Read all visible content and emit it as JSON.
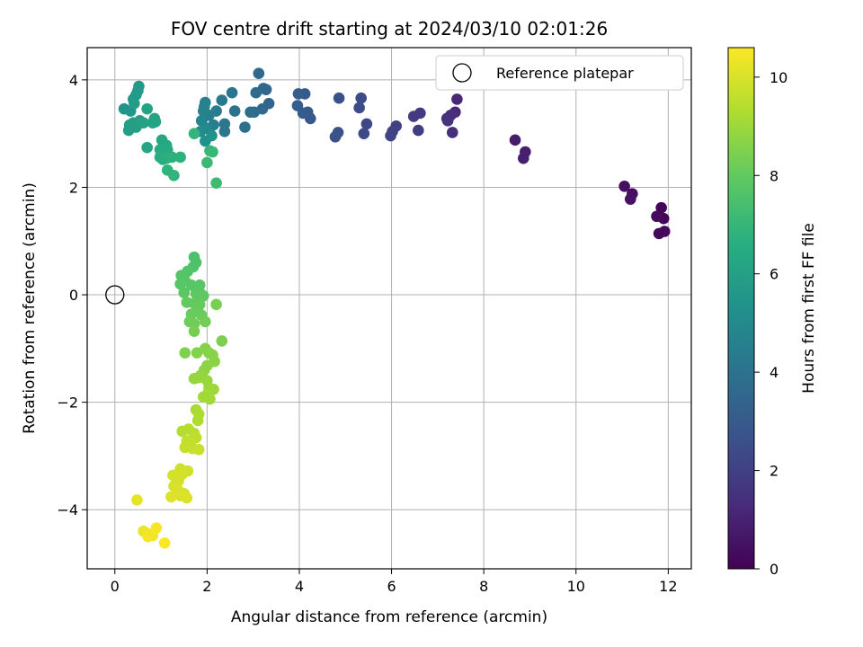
{
  "chart_data": {
    "type": "scatter",
    "title": "FOV centre drift starting at 2024/03/10 02:01:26",
    "xlabel": "Angular distance from reference (arcmin)",
    "ylabel": "Rotation from reference (arcmin)",
    "xlim": [
      -0.6,
      12.5
    ],
    "ylim": [
      -5.1,
      4.6
    ],
    "xticks": [
      "0",
      "2",
      "4",
      "6",
      "8",
      "10",
      "12"
    ],
    "yticks": [
      "4",
      "2",
      "0",
      "−2",
      "−4"
    ],
    "grid": true,
    "legend": {
      "position": "top-right",
      "label": "Reference platepar"
    },
    "reference_point": {
      "x": 0,
      "y": 0
    },
    "colorbar": {
      "label": "Hours from first FF file",
      "colormap": "viridis",
      "range": [
        0,
        10.6
      ],
      "ticks": [
        "0",
        "2",
        "4",
        "6",
        "8",
        "10"
      ]
    },
    "points": [
      {
        "x": 11.85,
        "y": 1.62,
        "c": 0.1
      },
      {
        "x": 11.9,
        "y": 1.42,
        "c": 0.15
      },
      {
        "x": 11.92,
        "y": 1.18,
        "c": 0.2
      },
      {
        "x": 11.8,
        "y": 1.14,
        "c": 0.25
      },
      {
        "x": 11.75,
        "y": 1.46,
        "c": 0.3
      },
      {
        "x": 11.22,
        "y": 1.88,
        "c": 0.4
      },
      {
        "x": 11.05,
        "y": 2.02,
        "c": 0.45
      },
      {
        "x": 11.18,
        "y": 1.78,
        "c": 0.5
      },
      {
        "x": 8.68,
        "y": 2.88,
        "c": 0.8
      },
      {
        "x": 8.9,
        "y": 2.66,
        "c": 0.9
      },
      {
        "x": 8.86,
        "y": 2.54,
        "c": 0.95
      },
      {
        "x": 7.42,
        "y": 3.64,
        "c": 1.2
      },
      {
        "x": 7.38,
        "y": 3.4,
        "c": 1.3
      },
      {
        "x": 7.28,
        "y": 3.34,
        "c": 1.35
      },
      {
        "x": 7.32,
        "y": 3.02,
        "c": 1.4
      },
      {
        "x": 7.2,
        "y": 3.28,
        "c": 1.45
      },
      {
        "x": 7.22,
        "y": 3.24,
        "c": 1.5
      },
      {
        "x": 6.62,
        "y": 3.38,
        "c": 1.8
      },
      {
        "x": 6.48,
        "y": 3.32,
        "c": 1.85
      },
      {
        "x": 6.58,
        "y": 3.06,
        "c": 1.9
      },
      {
        "x": 6.1,
        "y": 3.14,
        "c": 2.0
      },
      {
        "x": 6.02,
        "y": 3.04,
        "c": 2.05
      },
      {
        "x": 5.98,
        "y": 2.96,
        "c": 2.1
      },
      {
        "x": 5.46,
        "y": 3.18,
        "c": 2.3
      },
      {
        "x": 5.4,
        "y": 3.0,
        "c": 2.35
      },
      {
        "x": 5.34,
        "y": 3.66,
        "c": 2.4
      },
      {
        "x": 5.3,
        "y": 3.48,
        "c": 2.45
      },
      {
        "x": 4.86,
        "y": 3.66,
        "c": 2.6
      },
      {
        "x": 4.84,
        "y": 3.02,
        "c": 2.65
      },
      {
        "x": 4.78,
        "y": 2.94,
        "c": 2.7
      },
      {
        "x": 4.24,
        "y": 3.28,
        "c": 2.9
      },
      {
        "x": 4.18,
        "y": 3.4,
        "c": 2.95
      },
      {
        "x": 4.12,
        "y": 3.74,
        "c": 3.0
      },
      {
        "x": 4.08,
        "y": 3.38,
        "c": 3.05
      },
      {
        "x": 3.98,
        "y": 3.74,
        "c": 3.1
      },
      {
        "x": 3.96,
        "y": 3.52,
        "c": 3.15
      },
      {
        "x": 3.34,
        "y": 3.56,
        "c": 3.4
      },
      {
        "x": 3.28,
        "y": 3.82,
        "c": 3.45
      },
      {
        "x": 3.22,
        "y": 3.84,
        "c": 3.5
      },
      {
        "x": 3.2,
        "y": 3.46,
        "c": 3.55
      },
      {
        "x": 3.12,
        "y": 4.12,
        "c": 3.6
      },
      {
        "x": 3.06,
        "y": 3.76,
        "c": 3.65
      },
      {
        "x": 3.02,
        "y": 3.4,
        "c": 3.7
      },
      {
        "x": 2.94,
        "y": 3.4,
        "c": 3.75
      },
      {
        "x": 2.82,
        "y": 3.12,
        "c": 3.9
      },
      {
        "x": 2.6,
        "y": 3.42,
        "c": 4.0
      },
      {
        "x": 2.54,
        "y": 3.76,
        "c": 4.05
      },
      {
        "x": 2.38,
        "y": 3.04,
        "c": 4.15
      },
      {
        "x": 2.38,
        "y": 3.18,
        "c": 4.2
      },
      {
        "x": 2.32,
        "y": 3.62,
        "c": 4.25
      },
      {
        "x": 2.2,
        "y": 3.42,
        "c": 4.4
      },
      {
        "x": 2.14,
        "y": 3.16,
        "c": 4.5
      },
      {
        "x": 2.04,
        "y": 3.34,
        "c": 4.55
      },
      {
        "x": 1.96,
        "y": 3.58,
        "c": 4.6
      },
      {
        "x": 1.94,
        "y": 3.5,
        "c": 4.65
      },
      {
        "x": 1.92,
        "y": 3.42,
        "c": 4.7
      },
      {
        "x": 1.88,
        "y": 3.24,
        "c": 4.8
      },
      {
        "x": 1.98,
        "y": 3.1,
        "c": 4.9
      },
      {
        "x": 1.86,
        "y": 3.04,
        "c": 5.1
      },
      {
        "x": 1.96,
        "y": 2.86,
        "c": 5.3
      },
      {
        "x": 2.1,
        "y": 2.96,
        "c": 5.4
      },
      {
        "x": 0.2,
        "y": 3.46,
        "c": 5.5
      },
      {
        "x": 0.34,
        "y": 3.42,
        "c": 5.55
      },
      {
        "x": 0.4,
        "y": 3.64,
        "c": 5.6
      },
      {
        "x": 0.46,
        "y": 3.72,
        "c": 5.65
      },
      {
        "x": 0.52,
        "y": 3.88,
        "c": 5.7
      },
      {
        "x": 0.5,
        "y": 3.8,
        "c": 5.75
      },
      {
        "x": 0.42,
        "y": 3.56,
        "c": 5.8
      },
      {
        "x": 0.3,
        "y": 3.06,
        "c": 5.85
      },
      {
        "x": 0.32,
        "y": 3.16,
        "c": 5.9
      },
      {
        "x": 0.4,
        "y": 3.2,
        "c": 5.92
      },
      {
        "x": 0.46,
        "y": 3.12,
        "c": 5.95
      },
      {
        "x": 0.54,
        "y": 3.24,
        "c": 6.0
      },
      {
        "x": 0.62,
        "y": 3.2,
        "c": 6.02
      },
      {
        "x": 0.7,
        "y": 3.46,
        "c": 6.05
      },
      {
        "x": 0.82,
        "y": 3.2,
        "c": 6.1
      },
      {
        "x": 0.86,
        "y": 3.28,
        "c": 6.12
      },
      {
        "x": 0.88,
        "y": 3.22,
        "c": 6.15
      },
      {
        "x": 0.7,
        "y": 2.74,
        "c": 6.2
      },
      {
        "x": 1.02,
        "y": 2.88,
        "c": 6.3
      },
      {
        "x": 1.12,
        "y": 2.78,
        "c": 6.35
      },
      {
        "x": 1.14,
        "y": 2.7,
        "c": 6.4
      },
      {
        "x": 1.06,
        "y": 2.62,
        "c": 6.45
      },
      {
        "x": 0.98,
        "y": 2.7,
        "c": 6.5
      },
      {
        "x": 0.98,
        "y": 2.56,
        "c": 6.55
      },
      {
        "x": 1.04,
        "y": 2.52,
        "c": 6.6
      },
      {
        "x": 1.12,
        "y": 2.54,
        "c": 6.65
      },
      {
        "x": 1.24,
        "y": 2.56,
        "c": 6.7
      },
      {
        "x": 1.42,
        "y": 2.56,
        "c": 6.75
      },
      {
        "x": 1.14,
        "y": 2.32,
        "c": 6.8
      },
      {
        "x": 1.28,
        "y": 2.22,
        "c": 6.85
      },
      {
        "x": 1.72,
        "y": 3.0,
        "c": 6.9
      },
      {
        "x": 2.06,
        "y": 2.68,
        "c": 7.0
      },
      {
        "x": 2.12,
        "y": 2.66,
        "c": 7.05
      },
      {
        "x": 2.0,
        "y": 2.46,
        "c": 7.1
      },
      {
        "x": 2.2,
        "y": 2.08,
        "c": 7.2
      },
      {
        "x": 1.72,
        "y": 0.7,
        "c": 7.5
      },
      {
        "x": 1.76,
        "y": 0.6,
        "c": 7.55
      },
      {
        "x": 1.7,
        "y": 0.52,
        "c": 7.6
      },
      {
        "x": 1.58,
        "y": 0.44,
        "c": 7.65
      },
      {
        "x": 1.5,
        "y": 0.36,
        "c": 7.7
      },
      {
        "x": 1.44,
        "y": 0.36,
        "c": 7.72
      },
      {
        "x": 1.52,
        "y": 0.26,
        "c": 7.75
      },
      {
        "x": 1.42,
        "y": 0.2,
        "c": 7.78
      },
      {
        "x": 1.66,
        "y": 0.18,
        "c": 7.8
      },
      {
        "x": 1.84,
        "y": 0.18,
        "c": 7.82
      },
      {
        "x": 1.5,
        "y": 0.04,
        "c": 7.85
      },
      {
        "x": 1.76,
        "y": 0.02,
        "c": 7.88
      },
      {
        "x": 1.8,
        "y": 0.0,
        "c": 7.9
      },
      {
        "x": 1.86,
        "y": 0.02,
        "c": 7.92
      },
      {
        "x": 1.92,
        "y": -0.02,
        "c": 7.95
      },
      {
        "x": 1.56,
        "y": -0.14,
        "c": 8.0
      },
      {
        "x": 1.72,
        "y": -0.16,
        "c": 8.02
      },
      {
        "x": 1.84,
        "y": -0.18,
        "c": 8.05
      },
      {
        "x": 1.8,
        "y": -0.3,
        "c": 8.1
      },
      {
        "x": 1.66,
        "y": -0.36,
        "c": 8.12
      },
      {
        "x": 1.88,
        "y": -0.38,
        "c": 8.15
      },
      {
        "x": 1.62,
        "y": -0.5,
        "c": 8.2
      },
      {
        "x": 1.72,
        "y": -0.54,
        "c": 8.25
      },
      {
        "x": 1.96,
        "y": -0.5,
        "c": 8.3
      },
      {
        "x": 1.72,
        "y": -0.68,
        "c": 8.35
      },
      {
        "x": 2.2,
        "y": -0.18,
        "c": 8.4
      },
      {
        "x": 2.32,
        "y": -0.86,
        "c": 8.45
      },
      {
        "x": 1.52,
        "y": -1.08,
        "c": 8.5
      },
      {
        "x": 1.78,
        "y": -1.08,
        "c": 8.55
      },
      {
        "x": 1.96,
        "y": -1.0,
        "c": 8.6
      },
      {
        "x": 2.04,
        "y": -1.08,
        "c": 8.62
      },
      {
        "x": 2.12,
        "y": -1.12,
        "c": 8.65
      },
      {
        "x": 2.16,
        "y": -1.24,
        "c": 8.68
      },
      {
        "x": 2.0,
        "y": -1.32,
        "c": 8.7
      },
      {
        "x": 1.94,
        "y": -1.4,
        "c": 8.75
      },
      {
        "x": 1.86,
        "y": -1.5,
        "c": 8.8
      },
      {
        "x": 1.72,
        "y": -1.56,
        "c": 8.85
      },
      {
        "x": 1.82,
        "y": -1.54,
        "c": 8.88
      },
      {
        "x": 2.0,
        "y": -1.6,
        "c": 8.9
      },
      {
        "x": 2.04,
        "y": -1.74,
        "c": 8.95
      },
      {
        "x": 2.14,
        "y": -1.76,
        "c": 9.0
      },
      {
        "x": 2.0,
        "y": -1.86,
        "c": 9.05
      },
      {
        "x": 1.92,
        "y": -1.9,
        "c": 9.08
      },
      {
        "x": 2.06,
        "y": -1.94,
        "c": 9.1
      },
      {
        "x": 1.76,
        "y": -2.14,
        "c": 9.2
      },
      {
        "x": 1.82,
        "y": -2.22,
        "c": 9.25
      },
      {
        "x": 1.8,
        "y": -2.34,
        "c": 9.3
      },
      {
        "x": 1.46,
        "y": -2.54,
        "c": 9.4
      },
      {
        "x": 1.6,
        "y": -2.5,
        "c": 9.45
      },
      {
        "x": 1.72,
        "y": -2.58,
        "c": 9.5
      },
      {
        "x": 1.76,
        "y": -2.66,
        "c": 9.55
      },
      {
        "x": 1.56,
        "y": -2.72,
        "c": 9.6
      },
      {
        "x": 1.64,
        "y": -2.78,
        "c": 9.62
      },
      {
        "x": 1.52,
        "y": -2.84,
        "c": 9.65
      },
      {
        "x": 1.68,
        "y": -2.86,
        "c": 9.68
      },
      {
        "x": 1.82,
        "y": -2.88,
        "c": 9.7
      },
      {
        "x": 1.42,
        "y": -3.24,
        "c": 9.8
      },
      {
        "x": 1.58,
        "y": -3.28,
        "c": 9.85
      },
      {
        "x": 1.46,
        "y": -3.34,
        "c": 9.88
      },
      {
        "x": 1.26,
        "y": -3.36,
        "c": 9.9
      },
      {
        "x": 1.38,
        "y": -3.46,
        "c": 9.92
      },
      {
        "x": 1.28,
        "y": -3.56,
        "c": 9.95
      },
      {
        "x": 1.36,
        "y": -3.62,
        "c": 9.98
      },
      {
        "x": 1.5,
        "y": -3.7,
        "c": 10.0
      },
      {
        "x": 1.42,
        "y": -3.74,
        "c": 10.02
      },
      {
        "x": 1.56,
        "y": -3.78,
        "c": 10.05
      },
      {
        "x": 1.22,
        "y": -3.76,
        "c": 10.08
      },
      {
        "x": 0.48,
        "y": -3.82,
        "c": 10.2
      },
      {
        "x": 0.62,
        "y": -4.4,
        "c": 10.3
      },
      {
        "x": 0.7,
        "y": -4.44,
        "c": 10.35
      },
      {
        "x": 0.82,
        "y": -4.48,
        "c": 10.4
      },
      {
        "x": 0.72,
        "y": -4.5,
        "c": 10.45
      },
      {
        "x": 0.9,
        "y": -4.34,
        "c": 10.5
      },
      {
        "x": 1.08,
        "y": -4.62,
        "c": 10.55
      }
    ]
  }
}
